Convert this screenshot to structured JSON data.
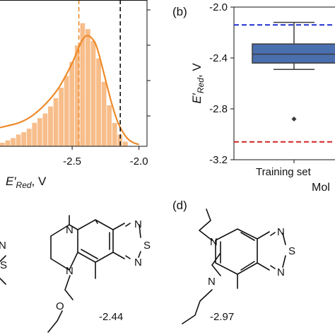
{
  "panel_a": {
    "xlabel": "E′Red, V",
    "xlabel_parts": {
      "main": "E′",
      "sub": "Red",
      "unit": ", V"
    },
    "x_ticks": [
      "-2.5",
      "-2.0"
    ],
    "chart_data": {
      "type": "bar",
      "title": "",
      "xlabel": "E′Red, V",
      "ylabel": "",
      "xlim": [
        -3.04,
        -1.94
      ],
      "bin_width": 0.04,
      "bins_start": [
        -3.04,
        -3.0,
        -2.96,
        -2.92,
        -2.88,
        -2.84,
        -2.8,
        -2.76,
        -2.72,
        -2.68,
        -2.64,
        -2.6,
        -2.56,
        -2.52,
        -2.48,
        -2.44,
        -2.4,
        -2.36,
        -2.32,
        -2.28,
        -2.24,
        -2.2,
        -2.16,
        -2.12
      ],
      "counts": [
        0.3,
        0.5,
        0.7,
        1.0,
        1.2,
        1.5,
        2.0,
        2.4,
        2.8,
        3.4,
        4.1,
        5.0,
        6.0,
        7.2,
        8.6,
        10.5,
        10.0,
        9.0,
        7.5,
        5.5,
        3.5,
        2.0,
        1.0,
        0.4
      ],
      "kde": {
        "x": [
          -3.04,
          -2.9,
          -2.8,
          -2.7,
          -2.6,
          -2.5,
          -2.44,
          -2.4,
          -2.36,
          -2.32,
          -2.28,
          -2.24,
          -2.2,
          -2.16,
          -2.12,
          -2.08,
          -2.04,
          -2.0
        ],
        "y": [
          1.6,
          2.0,
          2.6,
          3.6,
          5.0,
          7.1,
          8.7,
          9.4,
          9.3,
          8.6,
          7.0,
          5.2,
          3.5,
          2.1,
          1.2,
          0.6,
          0.3,
          0.15
        ]
      },
      "ylim": [
        0,
        12
      ],
      "vlines": [
        {
          "x": -2.45,
          "color": "#ee8a2a",
          "style": "dashed"
        },
        {
          "x": -2.14,
          "color": "#111111",
          "style": "dashed"
        }
      ],
      "colors": {
        "bar": "#f7bd8a",
        "kde": "#ee8a2a"
      }
    }
  },
  "panel_b": {
    "label": "(b)",
    "ylabel_parts": {
      "main": "E′",
      "sub": "Red",
      "unit": ", V"
    },
    "xtick": "Training set",
    "xlabel_partial": "Mol",
    "y_ticks": [
      "-2.0",
      "-2.4",
      "-2.8",
      "-3.2"
    ],
    "chart_data": {
      "type": "box",
      "title": "",
      "categories": [
        "Training set"
      ],
      "ylabel": "E′Red, V",
      "ylim": [
        -3.2,
        -2.0
      ],
      "box": {
        "whisker_low": -2.49,
        "q1": -2.44,
        "median": -2.37,
        "q3": -2.29,
        "whisker_high": -2.12,
        "outliers": [
          -2.88
        ]
      },
      "hlines": [
        {
          "y": -2.14,
          "color": "#1f2fd0",
          "style": "dashed"
        },
        {
          "y": -3.06,
          "color": "#d42424",
          "style": "dashed"
        }
      ],
      "colors": {
        "box": "#4a6fae"
      }
    }
  },
  "panel_c": {
    "value": "-2.44"
  },
  "panel_d": {
    "label": "(d)",
    "value": "-2.97"
  },
  "atoms": {
    "N": "N",
    "S": "S",
    "O": "O"
  }
}
